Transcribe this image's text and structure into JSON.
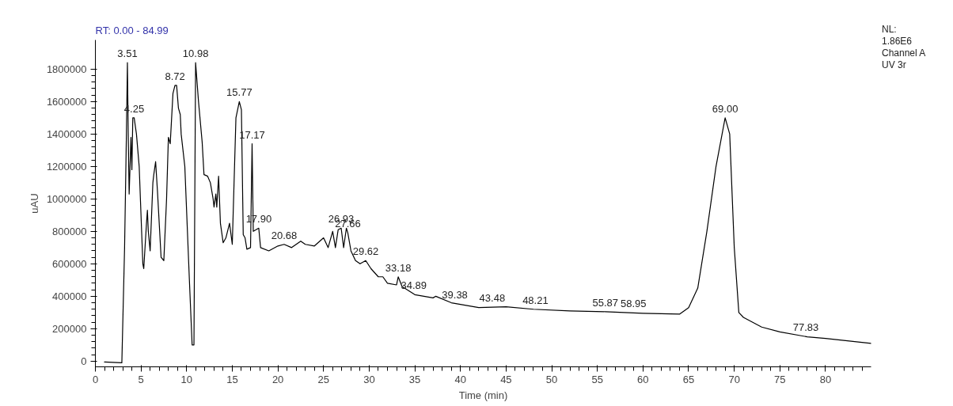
{
  "chart_data": {
    "type": "line",
    "title": "RT: 0.00 - 84.99",
    "xlabel": "Time (min)",
    "ylabel": "uAU",
    "x": [
      1.0,
      2.9,
      3.2,
      3.4,
      3.51,
      3.6,
      3.7,
      3.9,
      4.0,
      4.1,
      4.25,
      4.5,
      4.8,
      5.2,
      5.3,
      5.6,
      5.7,
      5.8,
      6.0,
      6.3,
      6.4,
      6.6,
      6.8,
      7.2,
      7.5,
      7.8,
      8.0,
      8.2,
      8.5,
      8.72,
      8.9,
      9.1,
      9.3,
      9.4,
      9.8,
      10.3,
      10.6,
      10.8,
      10.98,
      11.3,
      11.7,
      11.9,
      12.3,
      12.6,
      12.9,
      13.0,
      13.2,
      13.3,
      13.5,
      13.7,
      14.0,
      14.3,
      14.7,
      15.0,
      15.4,
      15.77,
      16.0,
      16.2,
      16.4,
      16.6,
      17.0,
      17.17,
      17.3,
      17.6,
      17.9,
      18.1,
      19.0,
      20.0,
      20.68,
      21.5,
      22.5,
      23.0,
      24.0,
      25.0,
      25.5,
      26.0,
      26.3,
      26.6,
      26.93,
      27.2,
      27.5,
      27.66,
      28.0,
      28.5,
      29.0,
      29.62,
      30.2,
      31.0,
      31.5,
      32.0,
      33.0,
      33.18,
      33.6,
      35.0,
      37.0,
      37.3,
      39.0,
      42.0,
      45.0,
      48.0,
      52.0,
      55.9,
      60.0,
      64.0,
      65.0,
      66.0,
      67.0,
      68.0,
      69.0,
      69.5,
      70.0,
      70.5,
      71.0,
      73.0,
      75.0,
      78.0,
      80.0,
      84.99
    ],
    "series": [
      {
        "color": "#000000",
        "values": [
          -5000,
          -10000,
          700000,
          1400000,
          1840000,
          1400000,
          1030000,
          1380000,
          1180000,
          1500000,
          1500000,
          1400000,
          1200000,
          600000,
          570000,
          850000,
          930000,
          800000,
          680000,
          1100000,
          1150000,
          1230000,
          1050000,
          640000,
          620000,
          1000000,
          1380000,
          1340000,
          1650000,
          1700000,
          1700000,
          1560000,
          1520000,
          1400000,
          1200000,
          500000,
          100000,
          100000,
          1840000,
          1600000,
          1350000,
          1150000,
          1140000,
          1100000,
          1000000,
          950000,
          1030000,
          950000,
          1140000,
          850000,
          730000,
          760000,
          850000,
          720000,
          1500000,
          1600000,
          1550000,
          780000,
          760000,
          690000,
          700000,
          1340000,
          800000,
          810000,
          820000,
          700000,
          680000,
          710000,
          720000,
          700000,
          740000,
          720000,
          710000,
          760000,
          700000,
          800000,
          700000,
          810000,
          820000,
          700000,
          820000,
          790000,
          680000,
          620000,
          600000,
          620000,
          570000,
          520000,
          520000,
          480000,
          470000,
          520000,
          460000,
          410000,
          390000,
          400000,
          360000,
          330000,
          335000,
          320000,
          310000,
          305000,
          295000,
          290000,
          330000,
          450000,
          800000,
          1200000,
          1500000,
          1400000,
          700000,
          300000,
          270000,
          210000,
          180000,
          150000,
          140000,
          110000
        ]
      }
    ],
    "xlim": [
      0,
      84.99
    ],
    "ylim": [
      -35000,
      1980000
    ],
    "xticks": [
      0,
      5,
      10,
      15,
      20,
      25,
      30,
      35,
      40,
      45,
      50,
      55,
      60,
      65,
      70,
      75,
      80
    ],
    "yticks": [
      0,
      200000,
      400000,
      600000,
      800000,
      1000000,
      1200000,
      1400000,
      1600000,
      1800000
    ],
    "grid": false,
    "marker": "none",
    "line_style": "solid",
    "annotations": [
      {
        "text": "3.51",
        "x": 3.51,
        "y": 1840000
      },
      {
        "text": "4.25",
        "x": 4.25,
        "y": 1500000
      },
      {
        "text": "8.72",
        "x": 8.72,
        "y": 1700000
      },
      {
        "text": "10.98",
        "x": 10.98,
        "y": 1840000
      },
      {
        "text": "15.77",
        "x": 15.77,
        "y": 1600000
      },
      {
        "text": "17.17",
        "x": 17.17,
        "y": 1340000
      },
      {
        "text": "17.90",
        "x": 17.9,
        "y": 820000
      },
      {
        "text": "20.68",
        "x": 20.68,
        "y": 720000
      },
      {
        "text": "26.93",
        "x": 26.93,
        "y": 820000
      },
      {
        "text": "27.66",
        "x": 27.66,
        "y": 790000
      },
      {
        "text": "29.62",
        "x": 29.62,
        "y": 620000
      },
      {
        "text": "33.18",
        "x": 33.18,
        "y": 520000
      },
      {
        "text": "34.89",
        "x": 34.89,
        "y": 410000
      },
      {
        "text": "39.38",
        "x": 39.38,
        "y": 355000
      },
      {
        "text": "43.48",
        "x": 43.48,
        "y": 333000
      },
      {
        "text": "48.21",
        "x": 48.21,
        "y": 320000
      },
      {
        "text": "55.87",
        "x": 55.87,
        "y": 305000
      },
      {
        "text": "58.95",
        "x": 58.95,
        "y": 298000
      },
      {
        "text": "69.00",
        "x": 69.0,
        "y": 1500000
      },
      {
        "text": "77.83",
        "x": 77.83,
        "y": 152000
      },
      "NL:",
      "1.86E6",
      "Channel A",
      "UV 3r"
    ]
  }
}
